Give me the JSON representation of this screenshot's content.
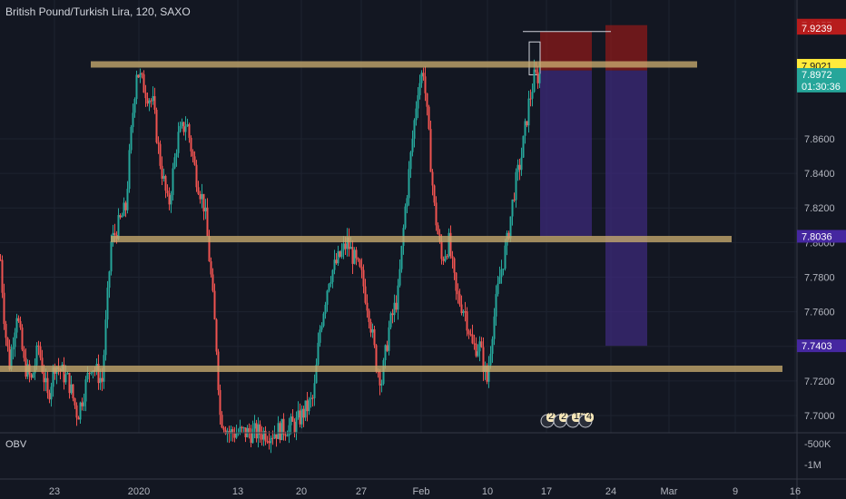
{
  "header": {
    "title": "British Pound/Turkish Lira, 120, SAXO"
  },
  "indicator": {
    "name": "OBV",
    "ticks": [
      "-500K",
      "-1M"
    ]
  },
  "colors": {
    "background": "#131722",
    "up": "#26a69a",
    "down": "#ef5350",
    "level": "#c8ab6e",
    "risk": "#8b1a1a",
    "reward": "#3c2a7a"
  },
  "chart_data": {
    "type": "candlestick",
    "title": "British Pound/Turkish Lira, 120, SAXO",
    "ylim": [
      7.69,
      7.935
    ],
    "y_ticks": [
      7.7,
      7.72,
      7.74,
      7.76,
      7.78,
      7.8,
      7.82,
      7.84,
      7.86
    ],
    "x_ticks": [
      "23",
      "2020",
      "13",
      "20",
      "27",
      "Feb",
      "10",
      "17",
      "24",
      "Mar",
      "9",
      "16"
    ],
    "support_resistance_levels": [
      7.903,
      7.802,
      7.727
    ],
    "price_path": [
      {
        "t": 0,
        "y": 7.79
      },
      {
        "t": 5,
        "y": 7.75
      },
      {
        "t": 10,
        "y": 7.73
      },
      {
        "t": 18,
        "y": 7.76
      },
      {
        "t": 26,
        "y": 7.73
      },
      {
        "t": 34,
        "y": 7.72
      },
      {
        "t": 42,
        "y": 7.74
      },
      {
        "t": 52,
        "y": 7.71
      },
      {
        "t": 60,
        "y": 7.73
      },
      {
        "t": 75,
        "y": 7.72
      },
      {
        "t": 85,
        "y": 7.7
      },
      {
        "t": 100,
        "y": 7.73
      },
      {
        "t": 112,
        "y": 7.72
      },
      {
        "t": 122,
        "y": 7.8
      },
      {
        "t": 130,
        "y": 7.81
      },
      {
        "t": 138,
        "y": 7.82
      },
      {
        "t": 145,
        "y": 7.87
      },
      {
        "t": 150,
        "y": 7.9
      },
      {
        "t": 158,
        "y": 7.89
      },
      {
        "t": 168,
        "y": 7.88
      },
      {
        "t": 175,
        "y": 7.85
      },
      {
        "t": 185,
        "y": 7.82
      },
      {
        "t": 195,
        "y": 7.86
      },
      {
        "t": 205,
        "y": 7.87
      },
      {
        "t": 215,
        "y": 7.84
      },
      {
        "t": 225,
        "y": 7.82
      },
      {
        "t": 232,
        "y": 7.78
      },
      {
        "t": 238,
        "y": 7.74
      },
      {
        "t": 242,
        "y": 7.7
      },
      {
        "t": 252,
        "y": 7.69
      },
      {
        "t": 275,
        "y": 7.69
      },
      {
        "t": 300,
        "y": 7.69
      },
      {
        "t": 325,
        "y": 7.695
      },
      {
        "t": 345,
        "y": 7.71
      },
      {
        "t": 352,
        "y": 7.75
      },
      {
        "t": 362,
        "y": 7.78
      },
      {
        "t": 372,
        "y": 7.79
      },
      {
        "t": 382,
        "y": 7.8
      },
      {
        "t": 390,
        "y": 7.79
      },
      {
        "t": 398,
        "y": 7.78
      },
      {
        "t": 406,
        "y": 7.76
      },
      {
        "t": 414,
        "y": 7.73
      },
      {
        "t": 420,
        "y": 7.72
      },
      {
        "t": 428,
        "y": 7.75
      },
      {
        "t": 438,
        "y": 7.77
      },
      {
        "t": 446,
        "y": 7.82
      },
      {
        "t": 452,
        "y": 7.85
      },
      {
        "t": 460,
        "y": 7.89
      },
      {
        "t": 466,
        "y": 7.9
      },
      {
        "t": 472,
        "y": 7.86
      },
      {
        "t": 478,
        "y": 7.82
      },
      {
        "t": 486,
        "y": 7.79
      },
      {
        "t": 494,
        "y": 7.8
      },
      {
        "t": 502,
        "y": 7.77
      },
      {
        "t": 512,
        "y": 7.76
      },
      {
        "t": 520,
        "y": 7.74
      },
      {
        "t": 528,
        "y": 7.74
      },
      {
        "t": 536,
        "y": 7.72
      },
      {
        "t": 542,
        "y": 7.75
      },
      {
        "t": 550,
        "y": 7.78
      },
      {
        "t": 558,
        "y": 7.8
      },
      {
        "t": 566,
        "y": 7.83
      },
      {
        "t": 574,
        "y": 7.85
      },
      {
        "t": 582,
        "y": 7.88
      },
      {
        "t": 588,
        "y": 7.895
      },
      {
        "t": 594,
        "y": 7.897
      }
    ],
    "price_labels": [
      {
        "value": "7.9257",
        "y": 7.9257,
        "style": "risk"
      },
      {
        "value": "7.9239",
        "y": 7.9239,
        "style": "risk"
      },
      {
        "value": "7.9025",
        "y": 7.9025,
        "style": "yellow"
      },
      {
        "value": "7.9021",
        "y": 7.9021,
        "style": "yellow"
      },
      {
        "value": "7.8972",
        "y": 7.8972,
        "style": "teal"
      },
      {
        "value": "01:30:36",
        "y": 7.8905,
        "style": "teal"
      },
      {
        "value": "7.8036",
        "y": 7.8036,
        "style": "purple"
      },
      {
        "value": "7.7403",
        "y": 7.7403,
        "style": "purple"
      }
    ],
    "positions": [
      {
        "name": "short-position-1",
        "stop": 7.922,
        "entry": 7.8995,
        "target": 7.8036
      },
      {
        "name": "short-position-2",
        "stop": 7.9257,
        "entry": 7.8995,
        "target": 7.7403
      }
    ],
    "event_badges": [
      "2",
      "2",
      "16",
      "4"
    ]
  }
}
